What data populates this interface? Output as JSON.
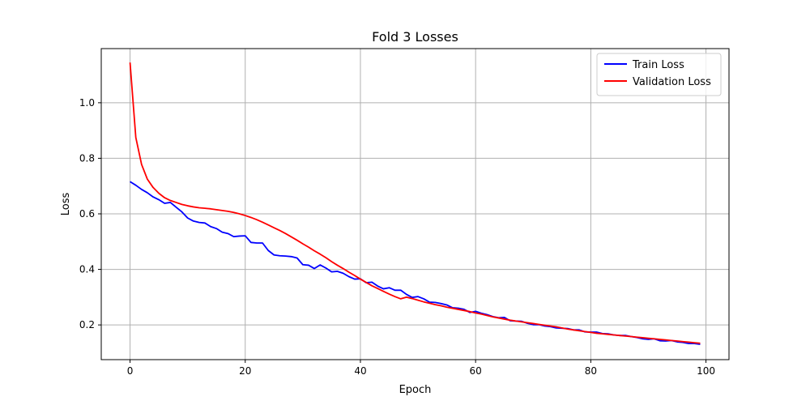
{
  "chart_data": {
    "type": "line",
    "title": "Fold 3 Losses",
    "xlabel": "Epoch",
    "ylabel": "Loss",
    "xlim": [
      -5,
      104
    ],
    "ylim": [
      0.075,
      1.195
    ],
    "xticks": [
      0,
      20,
      40,
      60,
      80,
      100
    ],
    "xtick_labels": [
      "0",
      "20",
      "40",
      "60",
      "80",
      "100"
    ],
    "yticks": [
      0.2,
      0.4,
      0.6,
      0.8,
      1.0
    ],
    "ytick_labels": [
      "0.2",
      "0.4",
      "0.6",
      "0.8",
      "1.0"
    ],
    "grid": true,
    "legend_position": "top-right",
    "series": [
      {
        "name": "Train Loss",
        "color": "#0000ff",
        "x": [
          0,
          1,
          2,
          3,
          4,
          5,
          6,
          7,
          8,
          9,
          10,
          11,
          12,
          13,
          14,
          15,
          16,
          17,
          18,
          19,
          20,
          21,
          22,
          23,
          24,
          25,
          26,
          27,
          28,
          29,
          30,
          31,
          32,
          33,
          34,
          35,
          36,
          37,
          38,
          39,
          40,
          41,
          42,
          43,
          44,
          45,
          46,
          47,
          48,
          49,
          50,
          51,
          52,
          53,
          54,
          55,
          56,
          57,
          58,
          59,
          60,
          61,
          62,
          63,
          64,
          65,
          66,
          67,
          68,
          69,
          70,
          71,
          72,
          73,
          74,
          75,
          76,
          77,
          78,
          79,
          80,
          81,
          82,
          83,
          84,
          85,
          86,
          87,
          88,
          89,
          90,
          91,
          92,
          93,
          94,
          95,
          96,
          97,
          98,
          99
        ],
        "values": [
          0.716,
          0.703,
          0.688,
          0.676,
          0.661,
          0.651,
          0.638,
          0.641,
          0.624,
          0.607,
          0.585,
          0.574,
          0.569,
          0.567,
          0.554,
          0.547,
          0.534,
          0.529,
          0.518,
          0.52,
          0.521,
          0.497,
          0.495,
          0.495,
          0.468,
          0.452,
          0.449,
          0.448,
          0.446,
          0.441,
          0.417,
          0.415,
          0.403,
          0.416,
          0.405,
          0.391,
          0.393,
          0.386,
          0.374,
          0.365,
          0.366,
          0.352,
          0.354,
          0.34,
          0.33,
          0.334,
          0.325,
          0.325,
          0.31,
          0.299,
          0.302,
          0.294,
          0.282,
          0.281,
          0.277,
          0.272,
          0.262,
          0.26,
          0.256,
          0.245,
          0.249,
          0.242,
          0.237,
          0.23,
          0.226,
          0.227,
          0.215,
          0.214,
          0.213,
          0.206,
          0.201,
          0.201,
          0.196,
          0.194,
          0.189,
          0.188,
          0.187,
          0.182,
          0.182,
          0.175,
          0.174,
          0.174,
          0.169,
          0.168,
          0.164,
          0.162,
          0.162,
          0.158,
          0.155,
          0.15,
          0.148,
          0.15,
          0.143,
          0.142,
          0.144,
          0.139,
          0.137,
          0.133,
          0.133,
          0.13
        ]
      },
      {
        "name": "Validation Loss",
        "color": "#ff0000",
        "x": [
          0,
          1,
          2,
          3,
          4,
          5,
          6,
          7,
          8,
          9,
          10,
          11,
          12,
          13,
          14,
          15,
          16,
          17,
          18,
          19,
          20,
          21,
          22,
          23,
          24,
          25,
          26,
          27,
          28,
          29,
          30,
          31,
          32,
          33,
          34,
          35,
          36,
          37,
          38,
          39,
          40,
          41,
          42,
          43,
          44,
          45,
          46,
          47,
          48,
          49,
          50,
          51,
          52,
          53,
          54,
          55,
          56,
          57,
          58,
          59,
          60,
          61,
          62,
          63,
          64,
          65,
          66,
          67,
          68,
          69,
          70,
          71,
          72,
          73,
          74,
          75,
          76,
          77,
          78,
          79,
          80,
          81,
          82,
          83,
          84,
          85,
          86,
          87,
          88,
          89,
          90,
          91,
          92,
          93,
          94,
          95,
          96,
          97,
          98,
          99
        ],
        "values": [
          1.145,
          0.875,
          0.778,
          0.725,
          0.695,
          0.674,
          0.658,
          0.648,
          0.641,
          0.634,
          0.629,
          0.625,
          0.622,
          0.62,
          0.618,
          0.615,
          0.612,
          0.609,
          0.605,
          0.6,
          0.594,
          0.587,
          0.579,
          0.57,
          0.56,
          0.55,
          0.54,
          0.529,
          0.517,
          0.505,
          0.492,
          0.48,
          0.467,
          0.455,
          0.442,
          0.428,
          0.415,
          0.403,
          0.39,
          0.378,
          0.365,
          0.353,
          0.341,
          0.331,
          0.321,
          0.311,
          0.302,
          0.294,
          0.3,
          0.295,
          0.289,
          0.283,
          0.278,
          0.273,
          0.269,
          0.264,
          0.26,
          0.256,
          0.252,
          0.248,
          0.243,
          0.239,
          0.234,
          0.229,
          0.225,
          0.221,
          0.217,
          0.214,
          0.211,
          0.208,
          0.205,
          0.202,
          0.199,
          0.196,
          0.193,
          0.189,
          0.185,
          0.182,
          0.179,
          0.176,
          0.173,
          0.17,
          0.168,
          0.166,
          0.164,
          0.162,
          0.16,
          0.158,
          0.156,
          0.154,
          0.152,
          0.15,
          0.148,
          0.146,
          0.144,
          0.142,
          0.14,
          0.138,
          0.136,
          0.134
        ]
      }
    ]
  }
}
